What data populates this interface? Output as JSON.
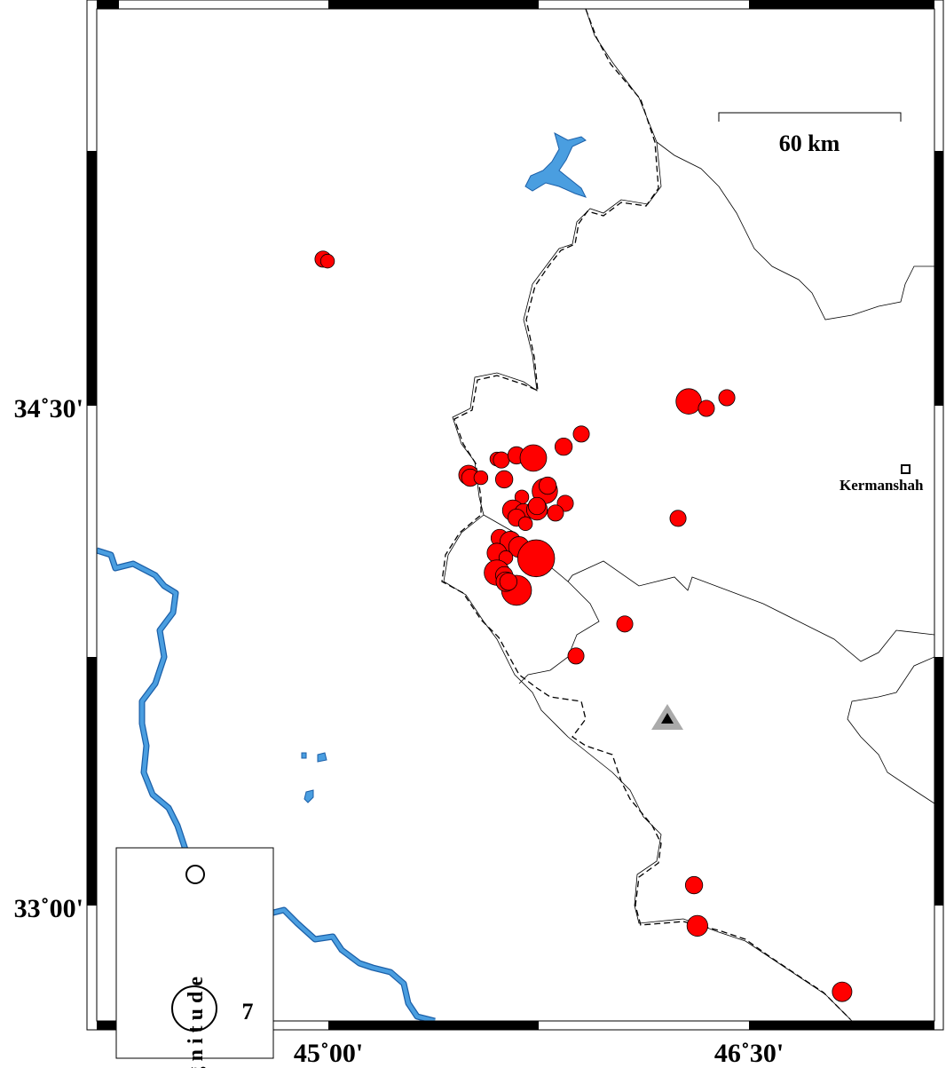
{
  "map": {
    "lon_range": [
      44.775,
      47.0
    ],
    "lat_range": [
      32.65,
      35.69
    ],
    "x_tick_labels": [
      {
        "lon": 45.0,
        "label": "45˚00'"
      },
      {
        "lon": 46.5,
        "label": "46˚30'"
      }
    ],
    "y_tick_labels": [
      {
        "lat": 34.5,
        "label": "34˚30'"
      },
      {
        "lat": 33.0,
        "label": "33˚00'"
      }
    ],
    "scale_bar": {
      "label": "60 km"
    },
    "city": {
      "name": "Kermanshah",
      "lon": 47.0,
      "lat": 34.32,
      "icon": "square-icon"
    },
    "station": {
      "lon": 46.28,
      "lat": 33.79,
      "icon": "triangle-icon"
    },
    "colors": {
      "event": "#ff0000",
      "river": "#4a9ee0",
      "station": "#aaaaaa"
    }
  },
  "legend": {
    "title": "Magnitude",
    "entries": [
      {
        "label": ""
      },
      {
        "label": "7"
      }
    ]
  },
  "events": [
    {
      "lon": 44.981,
      "lat": 34.94,
      "mag": 4.4
    },
    {
      "lon": 44.997,
      "lat": 34.934,
      "mag": 4.2
    },
    {
      "lon": 45.5,
      "lat": 34.292,
      "mag": 4.7
    },
    {
      "lon": 45.506,
      "lat": 34.284,
      "mag": 4.5
    },
    {
      "lon": 45.544,
      "lat": 34.284,
      "mag": 4.2
    },
    {
      "lon": 45.601,
      "lat": 34.34,
      "mag": 4.2
    },
    {
      "lon": 45.617,
      "lat": 34.337,
      "mag": 4.4
    },
    {
      "lon": 45.671,
      "lat": 34.351,
      "mag": 4.5
    },
    {
      "lon": 45.731,
      "lat": 34.343,
      "mag": 5.3
    },
    {
      "lon": 45.627,
      "lat": 34.279,
      "mag": 4.5
    },
    {
      "lon": 45.839,
      "lat": 34.377,
      "mag": 4.5
    },
    {
      "lon": 45.902,
      "lat": 34.415,
      "mag": 4.4
    },
    {
      "lon": 46.285,
      "lat": 34.513,
      "mag": 5.2
    },
    {
      "lon": 46.348,
      "lat": 34.492,
      "mag": 4.4
    },
    {
      "lon": 46.421,
      "lat": 34.524,
      "mag": 4.4
    },
    {
      "lon": 45.69,
      "lat": 34.226,
      "mag": 4.2
    },
    {
      "lon": 45.772,
      "lat": 34.244,
      "mag": 5.2
    },
    {
      "lon": 45.782,
      "lat": 34.26,
      "mag": 4.5
    },
    {
      "lon": 45.845,
      "lat": 34.207,
      "mag": 4.4
    },
    {
      "lon": 45.81,
      "lat": 34.178,
      "mag": 4.4
    },
    {
      "lon": 45.658,
      "lat": 34.186,
      "mag": 4.8
    },
    {
      "lon": 45.696,
      "lat": 34.18,
      "mag": 4.5
    },
    {
      "lon": 45.744,
      "lat": 34.188,
      "mag": 4.8
    },
    {
      "lon": 45.671,
      "lat": 34.164,
      "mag": 4.5
    },
    {
      "lon": 45.744,
      "lat": 34.199,
      "mag": 4.5
    },
    {
      "lon": 45.703,
      "lat": 34.146,
      "mag": 4.2
    },
    {
      "lon": 45.611,
      "lat": 34.103,
      "mag": 4.5
    },
    {
      "lon": 45.649,
      "lat": 34.092,
      "mag": 4.8
    },
    {
      "lon": 45.68,
      "lat": 34.076,
      "mag": 4.8
    },
    {
      "lon": 45.741,
      "lat": 34.042,
      "mag": 6.2
    },
    {
      "lon": 45.601,
      "lat": 34.058,
      "mag": 4.7
    },
    {
      "lon": 45.633,
      "lat": 34.044,
      "mag": 4.2
    },
    {
      "lon": 45.601,
      "lat": 33.999,
      "mag": 5.2
    },
    {
      "lon": 45.627,
      "lat": 33.991,
      "mag": 4.5
    },
    {
      "lon": 45.671,
      "lat": 33.946,
      "mag": 5.6
    },
    {
      "lon": 45.633,
      "lat": 33.972,
      "mag": 4.7
    },
    {
      "lon": 45.642,
      "lat": 33.972,
      "mag": 4.5
    },
    {
      "lon": 46.247,
      "lat": 34.162,
      "mag": 4.4
    },
    {
      "lon": 46.057,
      "lat": 33.845,
      "mag": 4.4
    },
    {
      "lon": 45.883,
      "lat": 33.749,
      "mag": 4.4
    },
    {
      "lon": 46.304,
      "lat": 33.061,
      "mag": 4.5
    },
    {
      "lon": 46.316,
      "lat": 32.939,
      "mag": 4.8
    },
    {
      "lon": 46.832,
      "lat": 32.741,
      "mag": 4.7
    }
  ]
}
